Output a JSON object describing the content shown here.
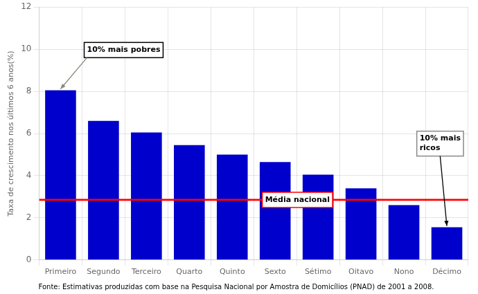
{
  "chart_data": {
    "type": "bar",
    "categories": [
      "Primeiro",
      "Segundo",
      "Terceiro",
      "Quarto",
      "Quinto",
      "Sexto",
      "Sétimo",
      "Oitavo",
      "Nono",
      "Décimo"
    ],
    "values": [
      8.05,
      6.6,
      6.05,
      5.45,
      5.0,
      4.65,
      4.05,
      3.4,
      2.6,
      1.55
    ],
    "color": "#0000CC",
    "ylabel": "Taxa de crescimento nos últimos 6 anos(%)",
    "ylim": [
      0,
      12
    ],
    "yticks": [
      0,
      2,
      4,
      6,
      8,
      10,
      12
    ],
    "grid": true,
    "reference_line": {
      "value": 2.85,
      "label": "Média nacional",
      "color": "red"
    },
    "annotations": [
      {
        "text": "10% mais pobres",
        "category": "Primeiro"
      },
      {
        "text": "10% mais\nricos",
        "category": "Décimo"
      }
    ],
    "source": "Fonte: Estimativas produzidas com base na Pesquisa Nacional por Amostra de Domicílios (PNAD) de 2001 a 2008."
  }
}
